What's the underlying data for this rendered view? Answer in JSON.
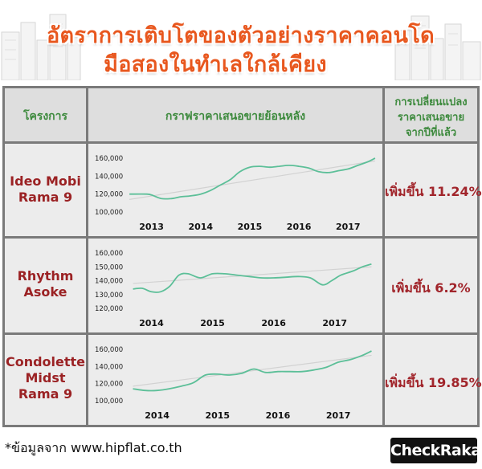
{
  "title": {
    "line1": "อัตราการเติบโตของตัวอย่างราคาคอนโด",
    "line2": "มือสองในทำเลใกล้เคียง"
  },
  "headers": {
    "project": "โครงการ",
    "graph": "กราฟราคาเสนอขายย้อนหลัง",
    "change_l1": "การเปลี่ยนแปลง",
    "change_l2": "ราคาเสนอขาย",
    "change_l3": "จากปีที่แล้ว"
  },
  "rows": [
    {
      "project_l1": "Ideo  Mobi",
      "project_l2": "Rama  9",
      "project_l3": "",
      "change": "เพิ่มขึ้น  11.24%"
    },
    {
      "project_l1": "Rhythm",
      "project_l2": "Asoke",
      "project_l3": "",
      "change": "เพิ่มขึ้น  6.2%"
    },
    {
      "project_l1": "Condolette",
      "project_l2": "Midst",
      "project_l3": "Rama  9",
      "change": "เพิ่มขึ้น  19.85%"
    }
  ],
  "chart_data": [
    {
      "type": "line",
      "series_color": "#5cbf98",
      "trend_color": "#d2d2d2",
      "xlabels": [
        "2013",
        "2014",
        "2015",
        "2016",
        "2017"
      ],
      "xlabel_years": [
        2013,
        2014,
        2015,
        2016,
        2017
      ],
      "yticks": [
        {
          "label": "160,000",
          "v": 160000
        },
        {
          "label": "140,000",
          "v": 140000
        },
        {
          "label": "120,000",
          "v": 120000
        },
        {
          "label": "100,000",
          "v": 100000
        }
      ],
      "ylim": [
        100000,
        160000
      ],
      "x": [
        2012.55,
        2012.9,
        2013.0,
        2013.2,
        2013.4,
        2013.6,
        2013.8,
        2014.0,
        2014.2,
        2014.4,
        2014.6,
        2014.8,
        2015.0,
        2015.2,
        2015.4,
        2015.6,
        2015.8,
        2016.0,
        2016.2,
        2016.4,
        2016.6,
        2016.8,
        2017.0,
        2017.2,
        2017.4,
        2017.55
      ],
      "values": [
        120000,
        120000,
        119000,
        115000,
        115000,
        117000,
        118000,
        120000,
        124000,
        130000,
        136000,
        145000,
        150000,
        151000,
        150000,
        151000,
        152000,
        151000,
        149000,
        145000,
        144000,
        146000,
        148000,
        152000,
        156000,
        160000
      ],
      "trend": {
        "x": [
          2012.55,
          2017.55
        ],
        "values": [
          114000,
          157000
        ]
      },
      "xlim": [
        2012.5,
        2017.6
      ]
    },
    {
      "type": "line",
      "series_color": "#5cbf98",
      "trend_color": "#d2d2d2",
      "xlabels": [
        "2014",
        "2015",
        "2016",
        "2017"
      ],
      "xlabel_years": [
        2014,
        2015,
        2016,
        2017
      ],
      "yticks": [
        {
          "label": "160,000",
          "v": 160000
        },
        {
          "label": "150,000",
          "v": 150000
        },
        {
          "label": "140,000",
          "v": 140000
        },
        {
          "label": "130,000",
          "v": 130000
        },
        {
          "label": "120,000",
          "v": 120000
        }
      ],
      "ylim": [
        120000,
        160000
      ],
      "x": [
        2013.7,
        2013.85,
        2014.0,
        2014.15,
        2014.3,
        2014.45,
        2014.6,
        2014.8,
        2015.0,
        2015.2,
        2015.4,
        2015.6,
        2015.8,
        2016.0,
        2016.2,
        2016.4,
        2016.6,
        2016.8,
        2016.95,
        2017.1,
        2017.3,
        2017.45,
        2017.6
      ],
      "values": [
        134000,
        134500,
        132000,
        132000,
        136000,
        144000,
        145000,
        142000,
        145000,
        145000,
        144000,
        143000,
        142000,
        142000,
        142500,
        143000,
        142000,
        137000,
        140000,
        144000,
        147000,
        150000,
        152000
      ],
      "trend": {
        "x": [
          2013.7,
          2017.6
        ],
        "values": [
          138000,
          150000
        ]
      },
      "xlim": [
        2013.6,
        2017.7
      ]
    },
    {
      "type": "line",
      "series_color": "#5cbf98",
      "trend_color": "#d2d2d2",
      "xlabels": [
        "2014",
        "2015",
        "2016",
        "2017"
      ],
      "xlabel_years": [
        2014,
        2015,
        2016,
        2017
      ],
      "yticks": [
        {
          "label": "160,000",
          "v": 160000
        },
        {
          "label": "140,000",
          "v": 140000
        },
        {
          "label": "120,000",
          "v": 120000
        },
        {
          "label": "100,000",
          "v": 100000
        }
      ],
      "ylim": [
        100000,
        160000
      ],
      "x": [
        2013.6,
        2013.8,
        2014.0,
        2014.2,
        2014.4,
        2014.6,
        2014.8,
        2015.0,
        2015.2,
        2015.4,
        2015.6,
        2015.8,
        2016.0,
        2016.2,
        2016.4,
        2016.6,
        2016.8,
        2017.0,
        2017.2,
        2017.4,
        2017.55
      ],
      "values": [
        114000,
        112000,
        112000,
        114000,
        117000,
        121000,
        130000,
        131000,
        130000,
        132000,
        137000,
        133000,
        134000,
        134000,
        134000,
        136000,
        139000,
        145000,
        148000,
        153000,
        158000
      ],
      "trend": {
        "x": [
          2013.6,
          2017.55
        ],
        "values": [
          117000,
          153000
        ]
      },
      "xlim": [
        2013.5,
        2017.65
      ]
    }
  ],
  "footer": {
    "source": "*ข้อมูลจาก  www.hipflat.co.th",
    "logo": "CheckRaka"
  }
}
